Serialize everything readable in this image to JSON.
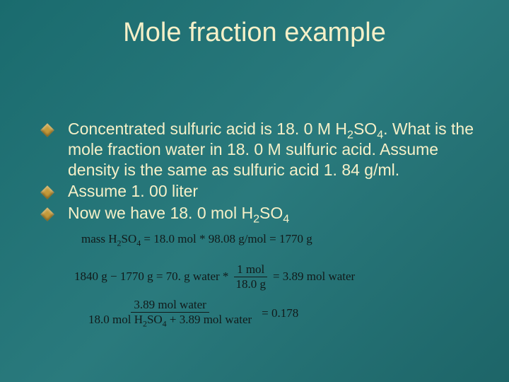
{
  "slide": {
    "title": "Mole fraction example",
    "background_gradient": [
      "#1a6b6e",
      "#2a7a7d",
      "#1d6568"
    ],
    "title_color": "#f5f0c8",
    "text_color": "#f5f0c8",
    "bullet_color": "#c49a3a",
    "equation_color": "#111a1a",
    "title_fontsize_pt": 29,
    "body_fontsize_pt": 17,
    "equation_fontsize_pt": 13
  },
  "bullets": {
    "b1_pre": "Concentrated sulfuric acid is 18. 0 M H",
    "b1_sub1": "2",
    "b1_mid1": "SO",
    "b1_sub2": "4",
    "b1_post": ". What is the mole fraction water in 18. 0 M sulfuric acid. Assume density is the same as sulfuric acid 1. 84 g/ml.",
    "b2": "Assume 1. 00 liter",
    "b3_pre": "Now we have 18. 0 mol H",
    "b3_sub1": "2",
    "b3_mid1": "SO",
    "b3_sub2": "4"
  },
  "equations": {
    "e1_a": "mass H",
    "e1_sub1": "2",
    "e1_b": "SO",
    "e1_sub2": "4",
    "e1_c": " = 18.0 mol * 98.08 g/mol = 1770 g",
    "e2_a": "1840 g − 1770 g = 70. g water * ",
    "e2_frac_num": "1 mol",
    "e2_frac_den": "18.0 g",
    "e2_b": " = 3.89 mol water",
    "e3_frac_num": "3.89 mol water",
    "e3_frac_den_a": "18.0 mol H",
    "e3_frac_den_sub1": "2",
    "e3_frac_den_b": "SO",
    "e3_frac_den_sub2": "4",
    "e3_frac_den_c": " + 3.89 mol water",
    "e3_rhs": " = 0.178"
  }
}
